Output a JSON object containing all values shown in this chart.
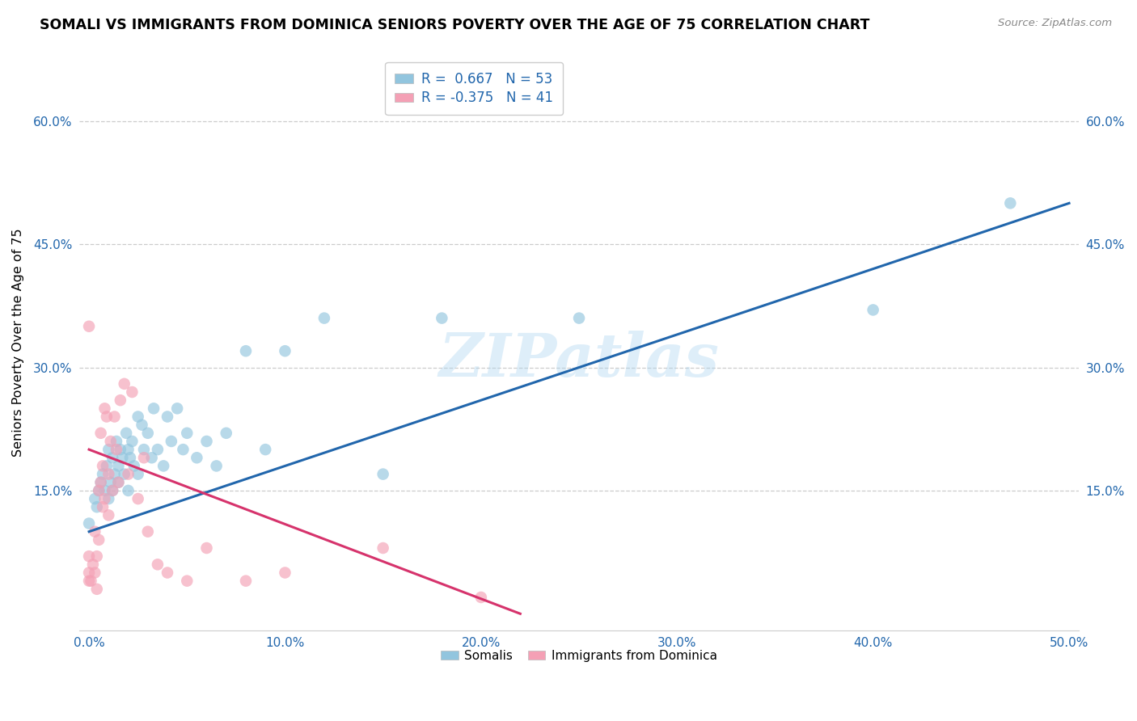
{
  "title": "SOMALI VS IMMIGRANTS FROM DOMINICA SENIORS POVERTY OVER THE AGE OF 75 CORRELATION CHART",
  "source": "Source: ZipAtlas.com",
  "ylabel": "Seniors Poverty Over the Age of 75",
  "xlim": [
    -0.005,
    0.505
  ],
  "ylim": [
    -0.02,
    0.68
  ],
  "xticks": [
    0.0,
    0.1,
    0.2,
    0.3,
    0.4,
    0.5
  ],
  "xticklabels": [
    "0.0%",
    "10.0%",
    "20.0%",
    "30.0%",
    "40.0%",
    "50.0%"
  ],
  "yticks": [
    0.15,
    0.3,
    0.45,
    0.6
  ],
  "yticklabels": [
    "15.0%",
    "30.0%",
    "45.0%",
    "60.0%"
  ],
  "somali_R": 0.667,
  "somali_N": 53,
  "dominica_R": -0.375,
  "dominica_N": 41,
  "somali_color": "#92c5de",
  "dominica_color": "#f4a0b5",
  "somali_line_color": "#2166ac",
  "dominica_line_color": "#d6336c",
  "watermark": "ZIPatlas",
  "somali_x": [
    0.0,
    0.003,
    0.004,
    0.005,
    0.006,
    0.007,
    0.008,
    0.009,
    0.01,
    0.01,
    0.011,
    0.012,
    0.012,
    0.013,
    0.014,
    0.015,
    0.015,
    0.016,
    0.017,
    0.018,
    0.019,
    0.02,
    0.02,
    0.021,
    0.022,
    0.023,
    0.025,
    0.025,
    0.027,
    0.028,
    0.03,
    0.032,
    0.033,
    0.035,
    0.038,
    0.04,
    0.042,
    0.045,
    0.048,
    0.05,
    0.055,
    0.06,
    0.065,
    0.07,
    0.08,
    0.09,
    0.1,
    0.12,
    0.15,
    0.18,
    0.25,
    0.4,
    0.47
  ],
  "somali_y": [
    0.11,
    0.14,
    0.13,
    0.15,
    0.16,
    0.17,
    0.15,
    0.18,
    0.14,
    0.2,
    0.16,
    0.15,
    0.19,
    0.17,
    0.21,
    0.16,
    0.18,
    0.2,
    0.19,
    0.17,
    0.22,
    0.15,
    0.2,
    0.19,
    0.21,
    0.18,
    0.17,
    0.24,
    0.23,
    0.2,
    0.22,
    0.19,
    0.25,
    0.2,
    0.18,
    0.24,
    0.21,
    0.25,
    0.2,
    0.22,
    0.19,
    0.21,
    0.18,
    0.22,
    0.32,
    0.2,
    0.32,
    0.36,
    0.17,
    0.36,
    0.36,
    0.37,
    0.5
  ],
  "dominica_x": [
    0.0,
    0.0,
    0.0,
    0.0,
    0.001,
    0.002,
    0.003,
    0.003,
    0.004,
    0.004,
    0.005,
    0.005,
    0.006,
    0.006,
    0.007,
    0.007,
    0.008,
    0.008,
    0.009,
    0.01,
    0.01,
    0.011,
    0.012,
    0.013,
    0.014,
    0.015,
    0.016,
    0.018,
    0.02,
    0.022,
    0.025,
    0.028,
    0.03,
    0.035,
    0.04,
    0.05,
    0.06,
    0.08,
    0.1,
    0.15,
    0.2
  ],
  "dominica_y": [
    0.04,
    0.05,
    0.07,
    0.35,
    0.04,
    0.06,
    0.05,
    0.1,
    0.03,
    0.07,
    0.09,
    0.15,
    0.22,
    0.16,
    0.18,
    0.13,
    0.25,
    0.14,
    0.24,
    0.12,
    0.17,
    0.21,
    0.15,
    0.24,
    0.2,
    0.16,
    0.26,
    0.28,
    0.17,
    0.27,
    0.14,
    0.19,
    0.1,
    0.06,
    0.05,
    0.04,
    0.08,
    0.04,
    0.05,
    0.08,
    0.02
  ],
  "somali_line_x0": 0.0,
  "somali_line_x1": 0.5,
  "somali_line_y0": 0.1,
  "somali_line_y1": 0.5,
  "dominica_line_x0": 0.0,
  "dominica_line_x1": 0.22,
  "dominica_line_y0": 0.2,
  "dominica_line_y1": 0.0
}
